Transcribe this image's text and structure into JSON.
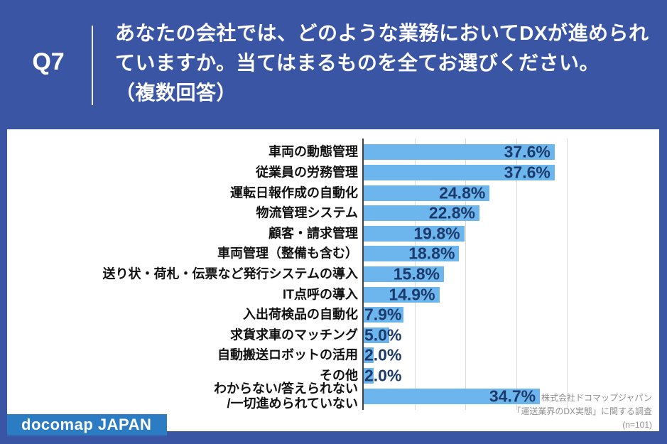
{
  "header": {
    "question_number": "Q7",
    "question_text_lines": [
      "あなたの会社では、どのような業務においてDXが進められ",
      "ていますか。当てはまるものを全てお選びください。",
      "（複数回答）"
    ]
  },
  "chart_data": {
    "type": "bar",
    "orientation": "horizontal",
    "title": "",
    "xlabel": "",
    "ylabel": "",
    "xlim": [
      0,
      40
    ],
    "gridline_interval_pct": 10,
    "grid": true,
    "categories": [
      "車両の動態管理",
      "従業員の労務管理",
      "運転日報作成の自動化",
      "物流管理システム",
      "顧客・請求管理",
      "車両管理（整備も含む）",
      "送り状・荷札・伝票など発行システムの導入",
      "IT点呼の導入",
      "入出荷検品の自動化",
      "求貨求車のマッチング",
      "自動搬送ロボットの活用",
      "その他",
      "わからない/答えられない\n/一切進められていない"
    ],
    "values": [
      37.6,
      37.6,
      24.8,
      22.8,
      19.8,
      18.8,
      15.8,
      14.9,
      7.9,
      5.0,
      2.0,
      2.0,
      34.7
    ],
    "value_labels": [
      "37.6%",
      "37.6%",
      "24.8%",
      "22.8%",
      "19.8%",
      "18.8%",
      "15.8%",
      "14.9%",
      "7.9%",
      "5.0%",
      "2.0%",
      "2.0%",
      "34.7%"
    ],
    "bar_color": "#6DB6ED",
    "value_label_color": "#1C3A6B"
  },
  "footer": {
    "logo_text": "docomap JAPAN",
    "source_lines": [
      "株式会社ドコマップジャパン",
      "「運送業界のDX実態」に関する調査",
      "(n=101)"
    ]
  },
  "colors": {
    "background": "#3A55A3",
    "panel": "#FFFFFF",
    "bar": "#6DB6ED",
    "value_text": "#1C3A6B",
    "logo_background": "#2C7CC3",
    "source_text": "#8F8F8F",
    "gridline": "#D9D9D9",
    "axis": "#404040"
  }
}
